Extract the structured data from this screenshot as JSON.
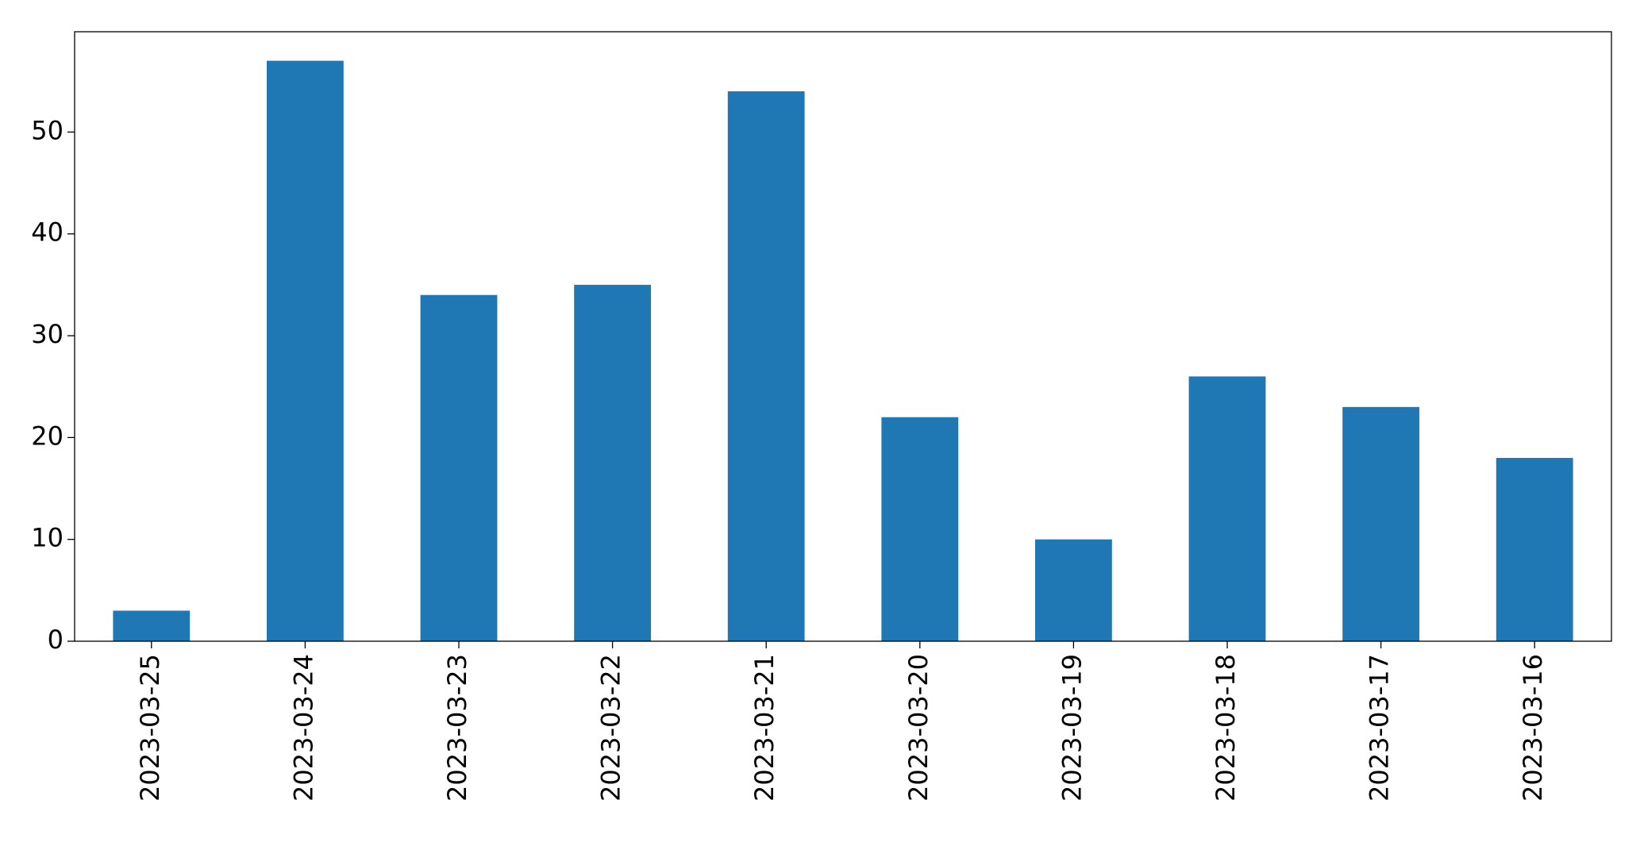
{
  "chart_data": {
    "type": "bar",
    "categories": [
      "2023-03-25",
      "2023-03-24",
      "2023-03-23",
      "2023-03-22",
      "2023-03-21",
      "2023-03-20",
      "2023-03-19",
      "2023-03-18",
      "2023-03-17",
      "2023-03-16"
    ],
    "values": [
      3,
      57,
      34,
      35,
      54,
      22,
      10,
      26,
      23,
      18
    ],
    "color": "#1f77b4",
    "ylim": [
      0,
      59.85
    ],
    "yticks": [
      0,
      10,
      20,
      30,
      40,
      50
    ],
    "grid": false
  }
}
